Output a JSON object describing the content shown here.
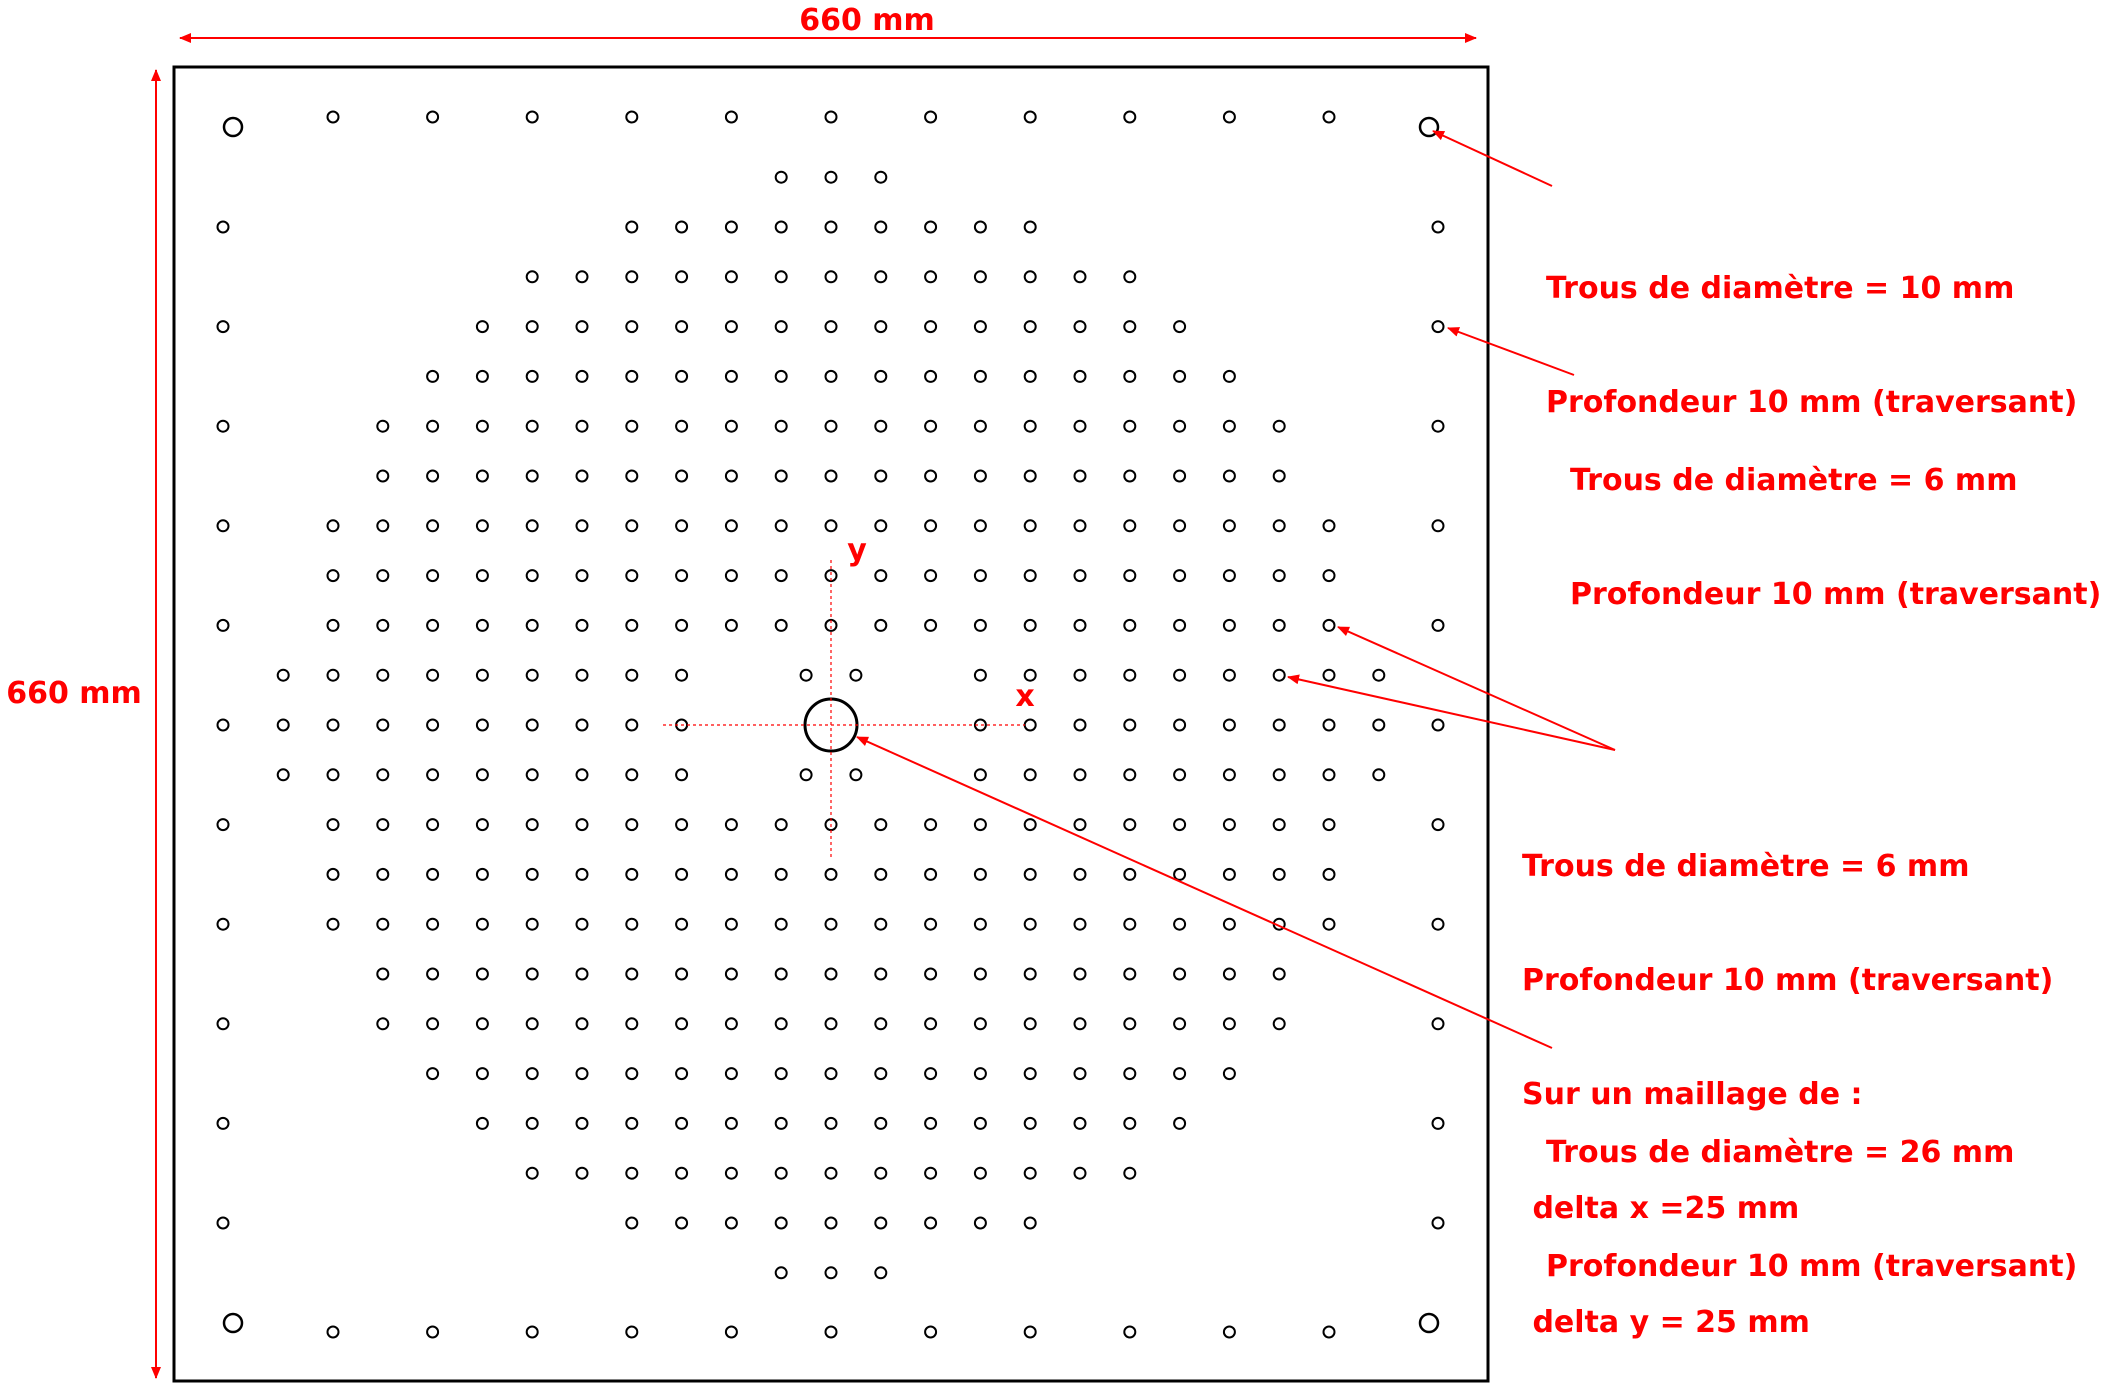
{
  "dimensions": {
    "width_label": "660 mm",
    "height_label": "660 mm"
  },
  "axes": {
    "x_label": "x",
    "y_label": "y"
  },
  "annotations": [
    {
      "lines": [
        "Trous de diamètre = 10 mm",
        "Profondeur 10 mm (traversant)"
      ]
    },
    {
      "lines": [
        "Trous de diamètre = 6 mm",
        "Profondeur 10 mm (traversant)"
      ]
    },
    {
      "lines": [
        "Trous de diamètre = 6 mm",
        "Profondeur 10 mm (traversant)",
        "Sur un maillage de :",
        " delta x =25 mm",
        " delta y = 25 mm"
      ]
    },
    {
      "lines": [
        "Trous de diamètre = 26 mm",
        "Profondeur 10 mm (traversant)"
      ]
    }
  ],
  "grid_pattern": {
    "mesh_mm": 25,
    "row_spans": [
      [
        -1,
        1
      ],
      [
        -4,
        4
      ],
      [
        -6,
        6
      ],
      [
        -7,
        7
      ],
      [
        -8,
        8
      ],
      [
        -9,
        9
      ],
      [
        -9,
        9
      ],
      [
        -10,
        10
      ],
      [
        -10,
        10
      ],
      [
        -10,
        10
      ],
      [
        -11,
        11
      ],
      [
        -11,
        11
      ],
      [
        -11,
        11
      ],
      [
        -10,
        10
      ],
      [
        -10,
        10
      ],
      [
        -10,
        10
      ],
      [
        -9,
        9
      ],
      [
        -9,
        9
      ],
      [
        -8,
        8
      ],
      [
        -7,
        7
      ],
      [
        -6,
        6
      ],
      [
        -4,
        4
      ],
      [
        -1,
        1
      ]
    ]
  },
  "colors": {
    "annotation": "#ff0000",
    "outline": "#000000"
  }
}
